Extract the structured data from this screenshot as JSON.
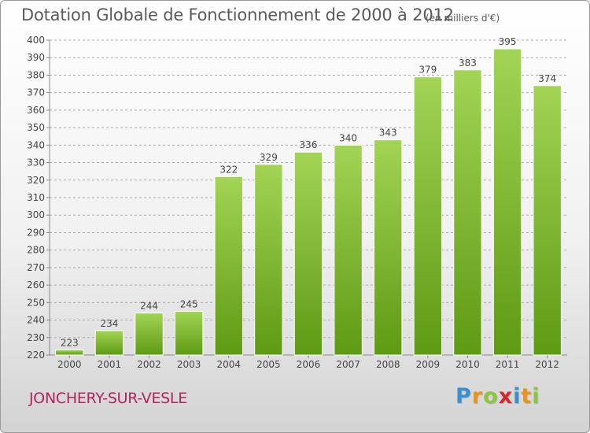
{
  "header": {
    "title": "Dotation Globale de Fonctionnement de 2000 à 2012",
    "subtitle": "(en milliers d'€)"
  },
  "footer": {
    "commune": "JONCHERY-SUR-VESLE",
    "logo_letters": [
      {
        "ch": "P",
        "color": "#3a8fd0"
      },
      {
        "ch": "r",
        "color": "#e8941c"
      },
      {
        "ch": "o",
        "color": "#8cc63f"
      },
      {
        "ch": "x",
        "color": "#d9262c"
      },
      {
        "ch": "i",
        "color": "#3a8fd0"
      },
      {
        "ch": "t",
        "color": "#e8941c"
      },
      {
        "ch": "i",
        "color": "#8cc63f"
      }
    ]
  },
  "chart_data": {
    "type": "bar",
    "categories": [
      "2000",
      "2001",
      "2002",
      "2003",
      "2004",
      "2005",
      "2006",
      "2007",
      "2008",
      "2009",
      "2010",
      "2011",
      "2012"
    ],
    "values": [
      223,
      234,
      244,
      245,
      322,
      329,
      336,
      340,
      343,
      379,
      383,
      395,
      374
    ],
    "value_labels": [
      "223",
      "234",
      "244",
      "245",
      "322",
      "329",
      "336",
      "340",
      "343",
      "379",
      "383",
      "395",
      "374"
    ],
    "ylim": [
      220,
      400
    ],
    "yticks": [
      "220",
      "230",
      "240",
      "250",
      "260",
      "270",
      "280",
      "290",
      "300",
      "310",
      "320",
      "330",
      "340",
      "350",
      "360",
      "370",
      "380",
      "390",
      "400"
    ],
    "grid": true,
    "colors": {
      "bar_light": "#a3d455",
      "bar_dark": "#5e9a14",
      "grid": "#ababab",
      "axis": "#888888",
      "text": "#444444"
    }
  }
}
